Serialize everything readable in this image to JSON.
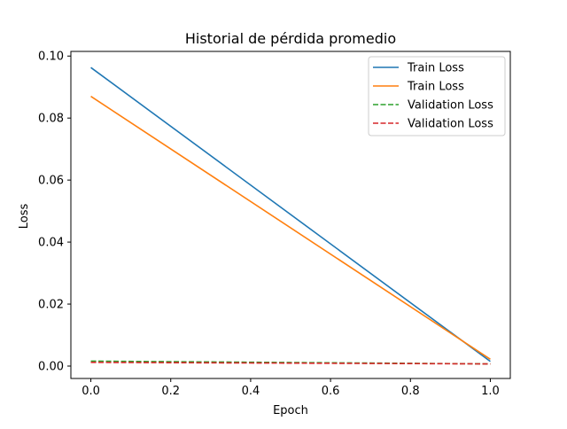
{
  "chart_data": {
    "type": "line",
    "title": "Historial de pérdida promedio",
    "xlabel": "Epoch",
    "ylabel": "Loss",
    "xlim": [
      -0.05,
      1.05
    ],
    "ylim": [
      -0.004,
      0.1015
    ],
    "x_ticks": [
      0.0,
      0.2,
      0.4,
      0.6,
      0.8,
      1.0
    ],
    "x_tick_labels": [
      "0.0",
      "0.2",
      "0.4",
      "0.6",
      "0.8",
      "1.0"
    ],
    "y_ticks": [
      0.0,
      0.02,
      0.04,
      0.06,
      0.08,
      0.1
    ],
    "y_tick_labels": [
      "0.00",
      "0.02",
      "0.04",
      "0.06",
      "0.08",
      "0.10"
    ],
    "grid": false,
    "legend_position": "top-right",
    "series": [
      {
        "name": "Train Loss",
        "x": [
          0,
          1
        ],
        "values": [
          0.0963,
          0.0015
        ],
        "color": "#1f77b4",
        "style": "solid"
      },
      {
        "name": "Train Loss",
        "x": [
          0,
          1
        ],
        "values": [
          0.087,
          0.0022
        ],
        "color": "#ff7f0e",
        "style": "solid"
      },
      {
        "name": "Validation Loss",
        "x": [
          0,
          1
        ],
        "values": [
          0.0016,
          0.0007
        ],
        "color": "#2ca02c",
        "style": "dashed"
      },
      {
        "name": "Validation Loss",
        "x": [
          0,
          1
        ],
        "values": [
          0.0012,
          0.0007
        ],
        "color": "#d62728",
        "style": "dashed"
      }
    ]
  }
}
